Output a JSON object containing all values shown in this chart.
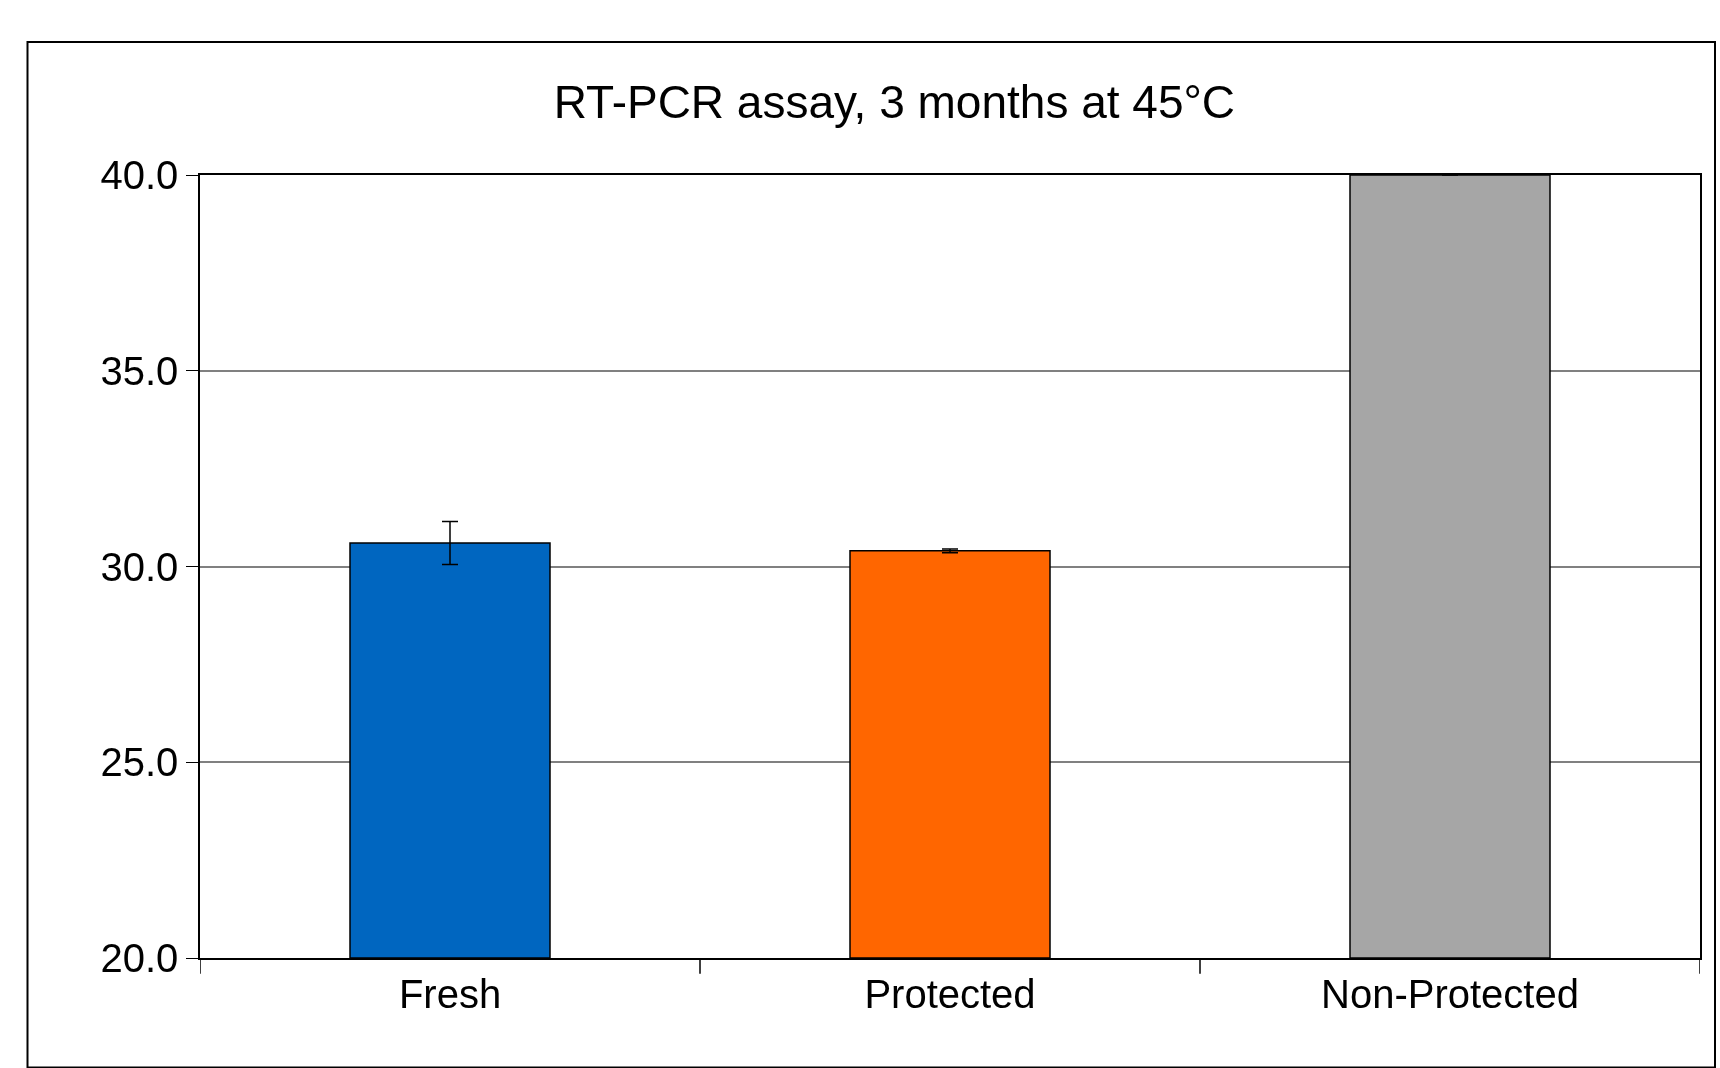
{
  "chart_data": {
    "type": "bar",
    "title": "RT-PCR assay, 3 months at 45°C",
    "categories": [
      "Fresh",
      "Protected",
      "Non-Protected"
    ],
    "values": [
      30.6,
      30.4,
      40.0
    ],
    "colors": [
      "#0066c0",
      "#ff6600",
      "#a6a6a6"
    ],
    "errors": [
      0.55,
      0.05,
      null
    ],
    "ylim": [
      20,
      40
    ],
    "yticks": [
      {
        "value": 20,
        "label": "20.0"
      },
      {
        "value": 25,
        "label": "25.0"
      },
      {
        "value": 30,
        "label": "30.0"
      },
      {
        "value": 35,
        "label": "35.0"
      },
      {
        "value": 40,
        "label": "40.0"
      }
    ],
    "grid": "y"
  }
}
